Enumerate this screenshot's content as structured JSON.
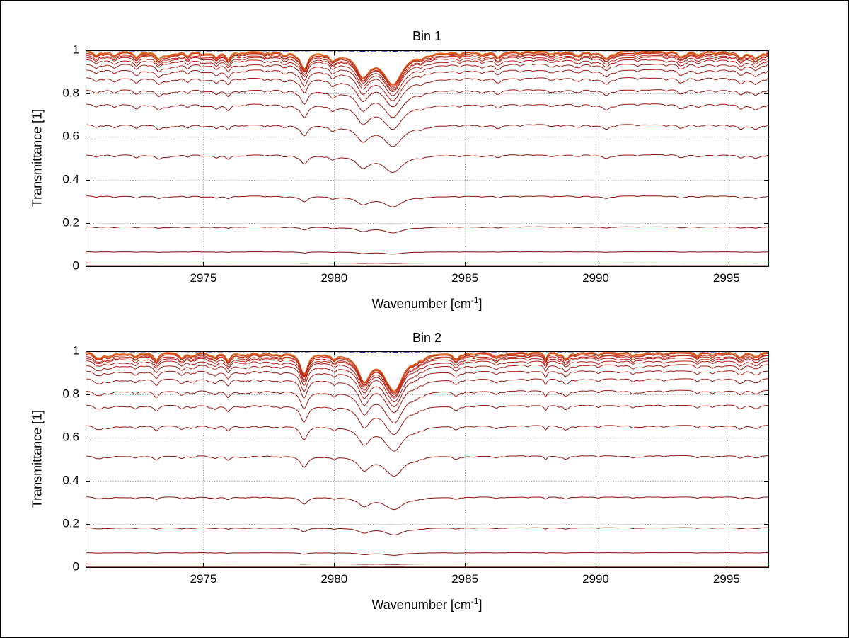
{
  "figure": {
    "background": "#ffffff",
    "frame_color": "#000000",
    "axis_color": "#000000",
    "text_color": "#000000"
  },
  "chart_data": [
    {
      "type": "line",
      "title": "Bin 1",
      "xlabel_base": "Wavenumber [cm",
      "xlabel_sup": "-1",
      "xlabel_close": "]",
      "ylabel": "Transmittance [1]",
      "xlim": [
        2970.5,
        2996.6
      ],
      "ylim": [
        0,
        1
      ],
      "xticks": [
        2975,
        2980,
        2985,
        2990,
        2995
      ],
      "yticks": [
        0,
        0.2,
        0.4,
        0.6,
        0.8,
        1
      ],
      "ytick_labels": [
        "0",
        "0.2",
        "0.4",
        "0.6",
        "0.8",
        "1"
      ],
      "grid_style": "dotted",
      "legend": "none",
      "reference_line": {
        "value": 1.0,
        "color": "#1818c0",
        "style": "dash-dot"
      },
      "series": {
        "model": "T_i(v) = baseline_i * (1 - sum_k depth_k * w_k^2 / ((v-c_k)^2 + w_k^2))",
        "baselines": [
          0.998,
          0.997,
          0.9955,
          0.9935,
          0.9905,
          0.986,
          0.979,
          0.97,
          0.957,
          0.938,
          0.911,
          0.874,
          0.819,
          0.752,
          0.657,
          0.517,
          0.326,
          0.183,
          0.067,
          0.015,
          0.003
        ],
        "color_stops": [
          [
            0.0,
            "#e8781e"
          ],
          [
            0.3,
            "#b81e12"
          ],
          [
            1.0,
            "#780a0a"
          ]
        ],
        "absorption_lines": [
          [
            2982.25,
            0.15,
            0.45
          ],
          [
            2981.1,
            0.105,
            0.3
          ],
          [
            2978.85,
            0.07,
            0.16
          ],
          [
            2979.95,
            0.018,
            0.1
          ],
          [
            2975.95,
            0.03,
            0.12
          ],
          [
            2975.5,
            0.026,
            0.12
          ],
          [
            2973.3,
            0.03,
            0.14
          ],
          [
            2972.45,
            0.024,
            0.12
          ],
          [
            2971.6,
            0.02,
            0.12
          ],
          [
            2970.9,
            0.02,
            0.12
          ],
          [
            2983.3,
            0.014,
            0.1
          ],
          [
            2984.8,
            0.012,
            0.1
          ],
          [
            2986.3,
            0.022,
            0.12
          ],
          [
            2987.1,
            0.01,
            0.08
          ],
          [
            2988.25,
            0.012,
            0.1
          ],
          [
            2989.35,
            0.01,
            0.08
          ],
          [
            2990.45,
            0.02,
            0.12
          ],
          [
            2991.6,
            0.01,
            0.08
          ],
          [
            2992.7,
            0.01,
            0.08
          ],
          [
            2993.85,
            0.012,
            0.09
          ],
          [
            2995.55,
            0.03,
            0.14
          ],
          [
            2996.1,
            0.022,
            0.12
          ]
        ]
      },
      "noise": {
        "seed": 13,
        "count": 80,
        "depth_min": 0.002,
        "depth_max": 0.012,
        "width_min": 0.05,
        "width_max": 0.12
      }
    },
    {
      "type": "line",
      "title": "Bin 2",
      "xlabel_base": "Wavenumber [cm",
      "xlabel_sup": "-1",
      "xlabel_close": "]",
      "ylabel": "Transmittance [1]",
      "xlim": [
        2970.5,
        2996.6
      ],
      "ylim": [
        0,
        1
      ],
      "xticks": [
        2975,
        2980,
        2985,
        2990,
        2995
      ],
      "yticks": [
        0,
        0.2,
        0.4,
        0.6,
        0.8,
        1
      ],
      "ytick_labels": [
        "0",
        "0.2",
        "0.4",
        "0.6",
        "0.8",
        "1"
      ],
      "grid_style": "dotted",
      "legend": "none",
      "reference_line": {
        "value": 1.0,
        "color": "#1818c0",
        "style": "dash-dot"
      },
      "series": {
        "model": "T_i(v) = baseline_i * (1 - sum_k depth_k * w_k^2 / ((v-c_k)^2 + w_k^2))",
        "baselines": [
          0.998,
          0.997,
          0.9955,
          0.9935,
          0.9905,
          0.986,
          0.979,
          0.97,
          0.957,
          0.938,
          0.911,
          0.874,
          0.819,
          0.752,
          0.657,
          0.517,
          0.326,
          0.183,
          0.067,
          0.015,
          0.003
        ],
        "color_stops": [
          [
            0.0,
            "#e8781e"
          ],
          [
            0.3,
            "#b81e12"
          ],
          [
            1.0,
            "#780a0a"
          ]
        ],
        "absorption_lines": [
          [
            2982.3,
            0.175,
            0.42
          ],
          [
            2981.15,
            0.12,
            0.28
          ],
          [
            2978.85,
            0.095,
            0.16
          ],
          [
            2980.0,
            0.022,
            0.1
          ],
          [
            2975.95,
            0.026,
            0.12
          ],
          [
            2975.45,
            0.022,
            0.11
          ],
          [
            2974.15,
            0.02,
            0.12
          ],
          [
            2973.2,
            0.024,
            0.13
          ],
          [
            2972.4,
            0.02,
            0.12
          ],
          [
            2970.9,
            0.018,
            0.12
          ],
          [
            2983.4,
            0.012,
            0.09
          ],
          [
            2984.6,
            0.012,
            0.09
          ],
          [
            2986.2,
            0.018,
            0.11
          ],
          [
            2987.4,
            0.01,
            0.08
          ],
          [
            2988.6,
            0.012,
            0.09
          ],
          [
            2990.1,
            0.014,
            0.1
          ],
          [
            2991.4,
            0.01,
            0.08
          ],
          [
            2992.6,
            0.01,
            0.08
          ],
          [
            2993.9,
            0.01,
            0.08
          ],
          [
            2995.5,
            0.022,
            0.12
          ],
          [
            2996.2,
            0.016,
            0.1
          ]
        ]
      },
      "noise": {
        "seed": 47,
        "count": 80,
        "depth_min": 0.002,
        "depth_max": 0.012,
        "width_min": 0.05,
        "width_max": 0.12
      }
    }
  ]
}
